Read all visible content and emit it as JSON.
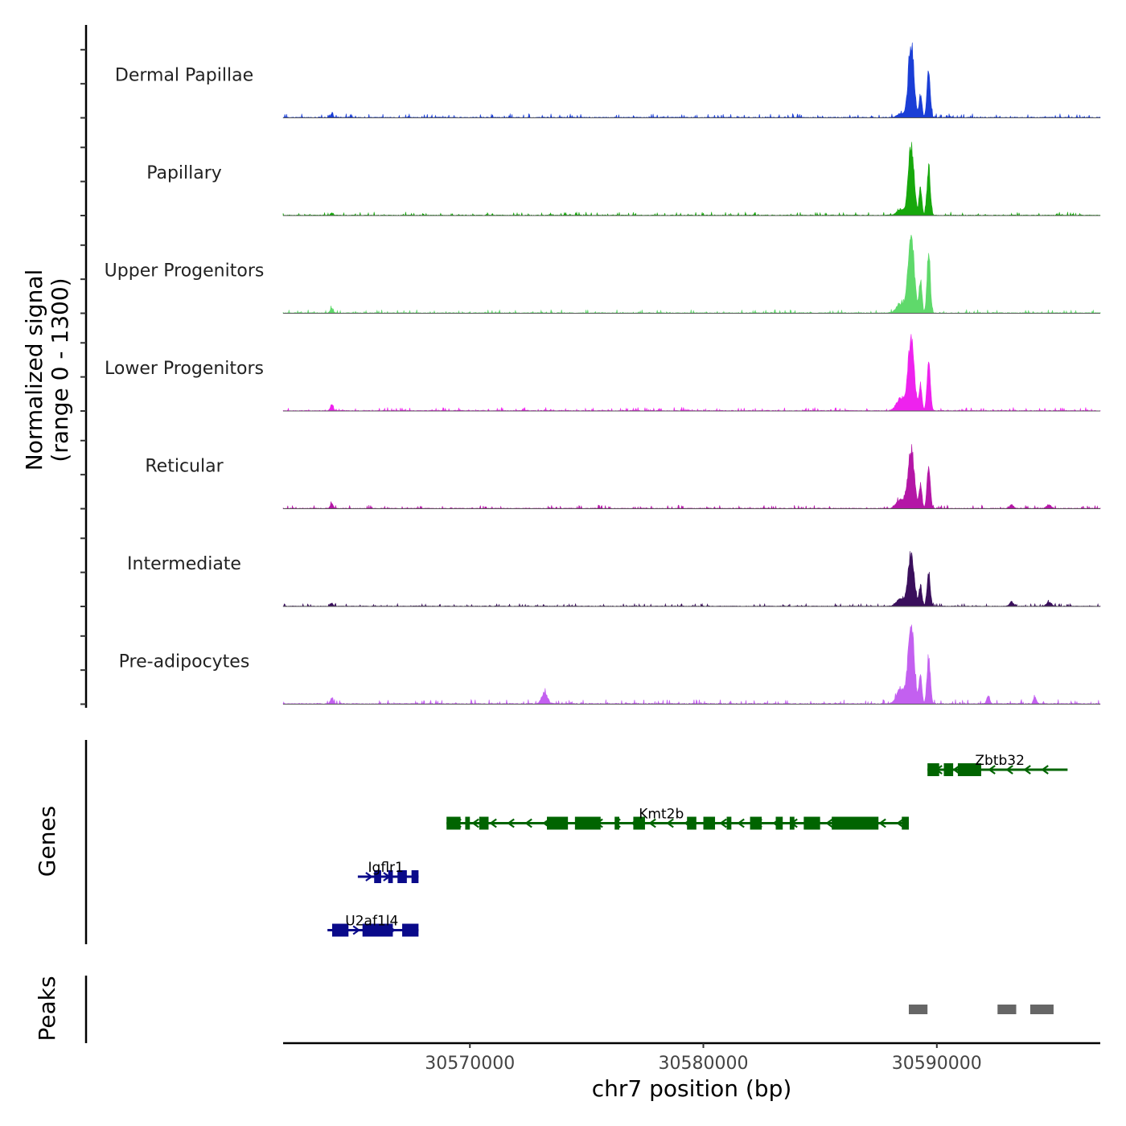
{
  "chart_data": {
    "type": "area",
    "title": "",
    "ylabel_line1": "Normalized signal",
    "ylabel_line2": "(range 0 - 1300)",
    "ylim": [
      0,
      1300
    ],
    "xlabel": "chr7 position (bp)",
    "xlim": [
      30562000,
      30597000
    ],
    "xticks": [
      30570000,
      30580000,
      30590000
    ],
    "xtick_labels": [
      "30570000",
      "30580000",
      "30590000"
    ],
    "tracks": [
      {
        "name": "Dermal Papillae",
        "color": "#1a3ed6",
        "baseline": 35,
        "peaks": [
          [
            30564080,
            60,
            50
          ],
          [
            30588900,
            1250,
            120
          ],
          [
            30589300,
            380,
            60
          ],
          [
            30589650,
            750,
            70
          ],
          [
            30588450,
            70,
            150
          ]
        ]
      },
      {
        "name": "Papillary",
        "color": "#17a80c",
        "baseline": 30,
        "peaks": [
          [
            30564080,
            40,
            50
          ],
          [
            30588900,
            1150,
            120
          ],
          [
            30589300,
            450,
            60
          ],
          [
            30589650,
            820,
            70
          ],
          [
            30588450,
            100,
            150
          ]
        ]
      },
      {
        "name": "Upper Progenitors",
        "color": "#5fd96b",
        "baseline": 30,
        "peaks": [
          [
            30564080,
            80,
            60
          ],
          [
            30588900,
            1300,
            130
          ],
          [
            30589300,
            550,
            60
          ],
          [
            30589650,
            1000,
            70
          ],
          [
            30588450,
            150,
            180
          ]
        ]
      },
      {
        "name": "Lower Progenitors",
        "color": "#ee22ee",
        "baseline": 30,
        "peaks": [
          [
            30564080,
            100,
            60
          ],
          [
            30588900,
            1200,
            130
          ],
          [
            30589300,
            450,
            60
          ],
          [
            30589650,
            830,
            70
          ],
          [
            30588450,
            200,
            180
          ]
        ]
      },
      {
        "name": "Reticular",
        "color": "#b416a6",
        "baseline": 30,
        "peaks": [
          [
            30564080,
            80,
            60
          ],
          [
            30588900,
            1000,
            130
          ],
          [
            30589300,
            400,
            60
          ],
          [
            30589650,
            700,
            70
          ],
          [
            30588450,
            150,
            180
          ],
          [
            30593200,
            60,
            80
          ],
          [
            30594800,
            60,
            100
          ]
        ]
      },
      {
        "name": "Intermediate",
        "color": "#3a0f5c",
        "baseline": 25,
        "peaks": [
          [
            30564080,
            50,
            60
          ],
          [
            30588900,
            880,
            130
          ],
          [
            30589300,
            350,
            60
          ],
          [
            30589650,
            550,
            70
          ],
          [
            30588450,
            120,
            180
          ],
          [
            30593200,
            80,
            80
          ],
          [
            30594800,
            70,
            100
          ]
        ]
      },
      {
        "name": "Pre-adipocytes",
        "color": "#c360f0",
        "baseline": 40,
        "peaks": [
          [
            30564080,
            90,
            60
          ],
          [
            30573200,
            190,
            120
          ],
          [
            30588900,
            1300,
            130
          ],
          [
            30589300,
            480,
            60
          ],
          [
            30589650,
            800,
            70
          ],
          [
            30588450,
            250,
            180
          ],
          [
            30592200,
            130,
            60
          ],
          [
            30594200,
            110,
            60
          ]
        ]
      }
    ],
    "genes_track_label": "Genes",
    "genes": [
      {
        "name": "Zbtb32",
        "color": "#006400",
        "start": 30589600,
        "end": 30595600,
        "strand": "-",
        "row": 0,
        "label_pos": 30592700,
        "exons": [
          [
            30589600,
            30590100
          ],
          [
            30590300,
            30590700
          ],
          [
            30590900,
            30591900
          ]
        ]
      },
      {
        "name": "Kmt2b",
        "color": "#006400",
        "start": 30569000,
        "end": 30588800,
        "strand": "-",
        "row": 1,
        "label_pos": 30578200,
        "exons": [
          [
            30569000,
            30569600
          ],
          [
            30569800,
            30570000
          ],
          [
            30570400,
            30570800
          ],
          [
            30573300,
            30574200
          ],
          [
            30574500,
            30575600
          ],
          [
            30576200,
            30576400
          ],
          [
            30577000,
            30577500
          ],
          [
            30579300,
            30579700
          ],
          [
            30580000,
            30580500
          ],
          [
            30581000,
            30581200
          ],
          [
            30582000,
            30582500
          ],
          [
            30583100,
            30583400
          ],
          [
            30583700,
            30583900
          ],
          [
            30584300,
            30585000
          ],
          [
            30585500,
            30587500
          ],
          [
            30588500,
            30588800
          ]
        ]
      },
      {
        "name": "Igflr1",
        "color": "#0a0a8a",
        "start": 30565200,
        "end": 30567800,
        "strand": "+",
        "row": 2,
        "label_pos": 30566400,
        "exons": [
          [
            30565900,
            30566200
          ],
          [
            30566500,
            30566700
          ],
          [
            30566900,
            30567300
          ],
          [
            30567500,
            30567800
          ]
        ]
      },
      {
        "name": "U2af1l4",
        "color": "#0a0a8a",
        "start": 30563900,
        "end": 30567800,
        "strand": "+",
        "row": 3,
        "label_pos": 30565800,
        "exons": [
          [
            30564100,
            30564800
          ],
          [
            30565400,
            30566700
          ],
          [
            30567100,
            30567800
          ]
        ]
      }
    ],
    "peaks_track_label": "Peaks",
    "peak_regions": [
      [
        30588800,
        30589600
      ],
      [
        30592600,
        30593400
      ],
      [
        30594000,
        30595000
      ]
    ],
    "peak_color": "#666666"
  }
}
